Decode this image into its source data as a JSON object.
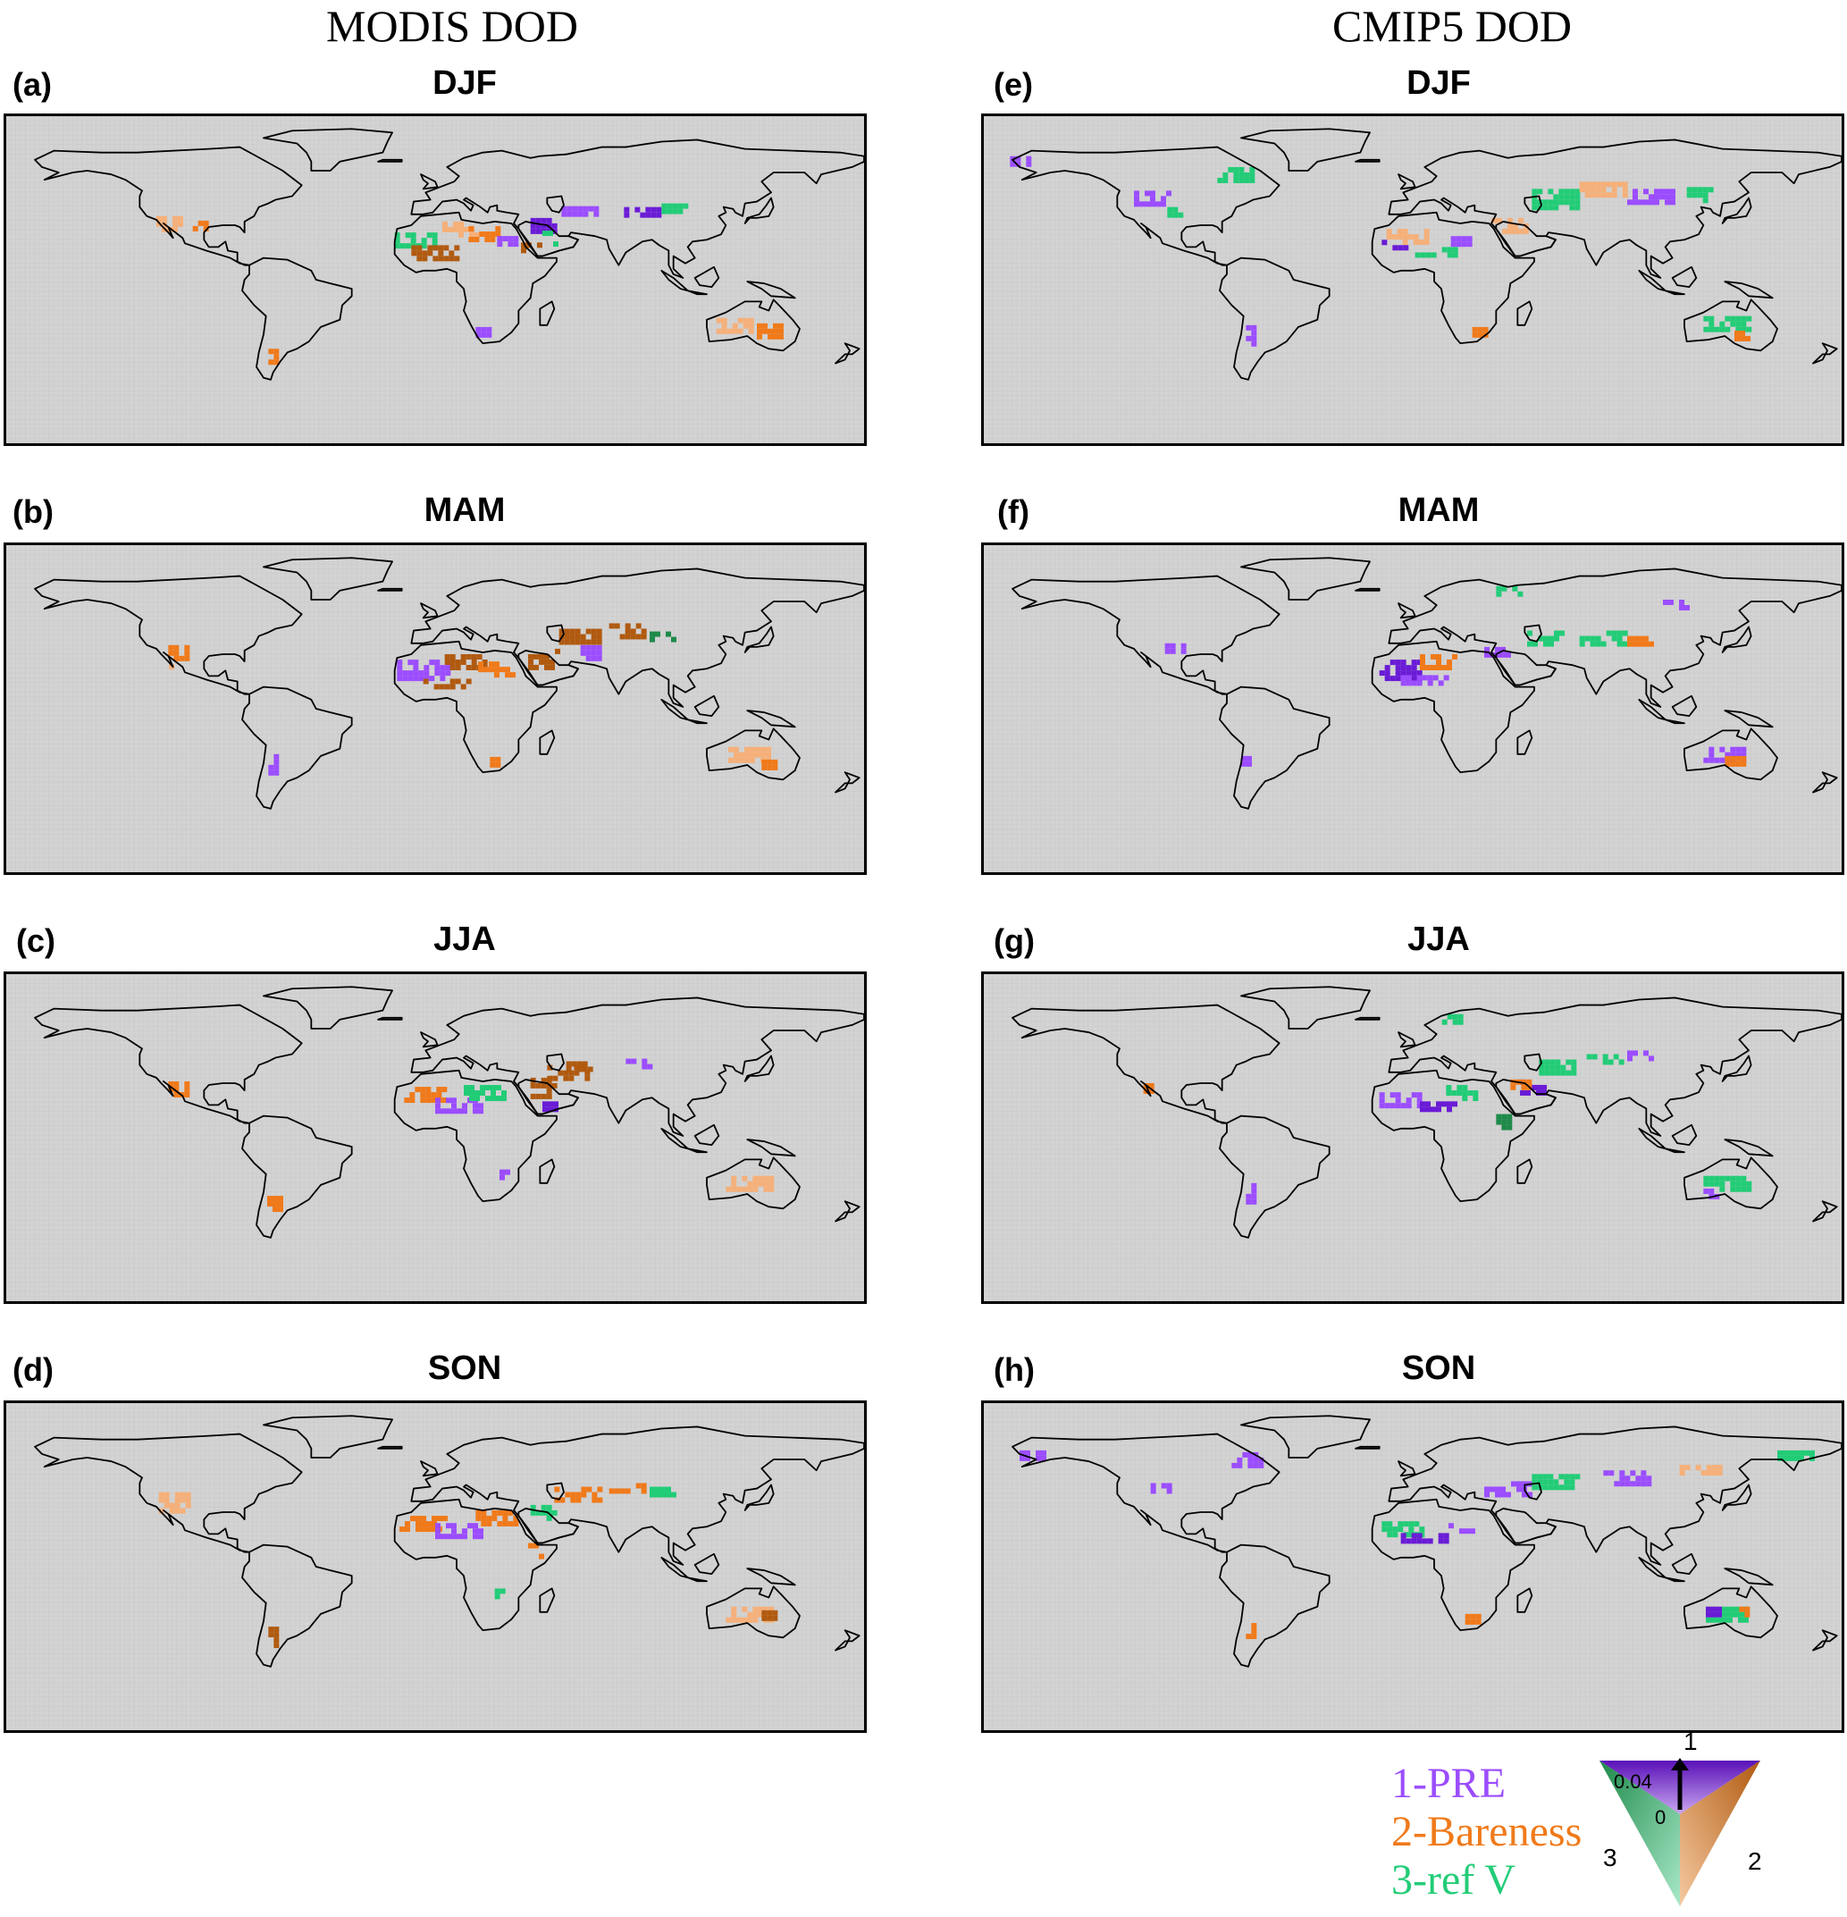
{
  "columns": [
    {
      "title": "MODIS DOD"
    },
    {
      "title": "CMIP5 DOD"
    }
  ],
  "panels": [
    {
      "letter": "(a)",
      "season": "DJF"
    },
    {
      "letter": "(b)",
      "season": "MAM"
    },
    {
      "letter": "(c)",
      "season": "JJA"
    },
    {
      "letter": "(d)",
      "season": "SON"
    },
    {
      "letter": "(e)",
      "season": "DJF"
    },
    {
      "letter": "(f)",
      "season": "MAM"
    },
    {
      "letter": "(g)",
      "season": "JJA"
    },
    {
      "letter": "(h)",
      "season": "SON"
    }
  ],
  "legend": {
    "items": [
      {
        "label": "1-PRE",
        "color": "#9B4DFF"
      },
      {
        "label": "2-Bareness",
        "color": "#F07A1A"
      },
      {
        "label": "3-ref V",
        "color": "#22CC77"
      }
    ],
    "triangle": {
      "vertex_labels": [
        "1",
        "2",
        "3"
      ],
      "scale_top": "0.04",
      "scale_bottom": "0"
    }
  },
  "colors": {
    "ocean_grid": "#d3d3d3",
    "pre": "#9B4DFF",
    "pre_dark": "#6A1BD6",
    "bareness": "#F07A1A",
    "bareness_light": "#F5B07A",
    "bareness_dark": "#B05A10",
    "refv": "#22CC77",
    "refv_dark": "#1E8A4A"
  }
}
